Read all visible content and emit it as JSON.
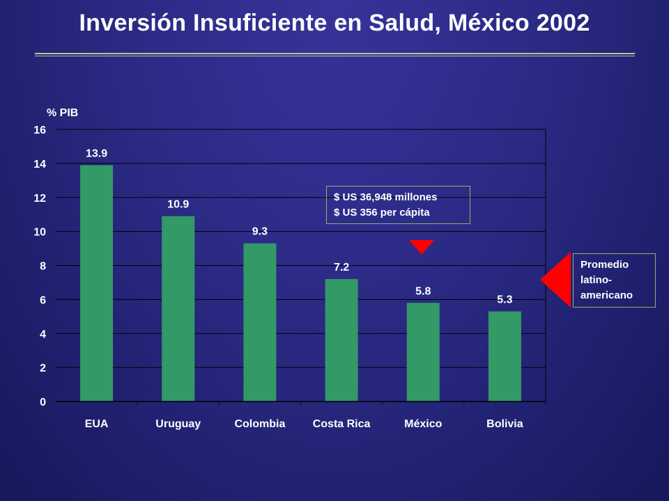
{
  "title": "Inversión Insuficiente en Salud, México 2002",
  "annotation": {
    "lines": [
      "$ US 36,948 millones",
      "$ US 356 per cápita"
    ]
  },
  "average_label": {
    "lines": [
      "Promedio",
      "latino-",
      "americano"
    ]
  },
  "colors": {
    "bar": "#339966",
    "marker": "#ff0000",
    "gridline": "#000000",
    "text": "#ffffff",
    "box_border": "#8db36a"
  },
  "chart_data": {
    "type": "bar",
    "title": "",
    "ylabel": "% PIB",
    "xlabel": "",
    "categories": [
      "EUA",
      "Uruguay",
      "Colombia",
      "Costa Rica",
      "México",
      "Bolivia"
    ],
    "values": [
      13.9,
      10.9,
      9.3,
      7.2,
      5.8,
      5.3
    ],
    "data_labels": [
      "13.9",
      "10.9",
      "9.3",
      "7.2",
      "5.8",
      "5.3"
    ],
    "ylim": [
      0,
      16
    ],
    "yticks": [
      "0",
      "2",
      "4",
      "6",
      "8",
      "10",
      "12",
      "14",
      "16"
    ],
    "grid": true,
    "highlighted_category": "México"
  }
}
